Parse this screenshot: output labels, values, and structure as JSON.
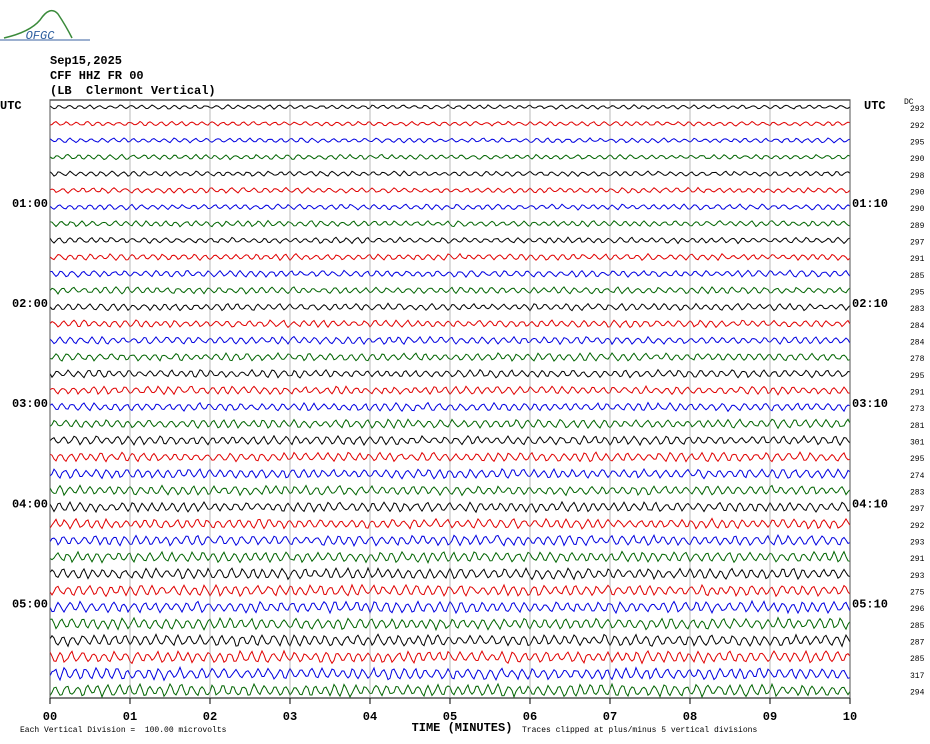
{
  "chart_data": {
    "type": "helicorder",
    "logo": "OFGC",
    "date": "Sep15,2025",
    "station": "CFF HHZ FR 00",
    "location": "(LB  Clermont Vertical)",
    "left_axis_label": "UTC",
    "right_axis_label": "UTC",
    "dc_label": "DC",
    "left_hour_labels": [
      "01:00",
      "02:00",
      "03:00",
      "04:00",
      "05:00"
    ],
    "right_hour_labels": [
      "01:10",
      "02:10",
      "03:10",
      "04:10",
      "05:10"
    ],
    "dc_values": [
      293,
      292,
      295,
      290,
      298,
      290,
      290,
      289,
      297,
      291,
      285,
      295,
      283,
      284,
      284,
      278,
      295,
      291,
      273,
      281,
      301,
      295,
      274,
      283,
      297,
      292,
      293,
      291,
      293,
      275,
      296,
      285,
      287,
      285,
      317,
      294
    ],
    "trace_colors": [
      "#000000",
      "#e00000",
      "#0000e0",
      "#006400"
    ],
    "x_label": "TIME (MINUTES)",
    "xlim": [
      0,
      10
    ],
    "xticks": [
      {
        "value": 0,
        "label": "00"
      },
      {
        "value": 1,
        "label": "01"
      },
      {
        "value": 2,
        "label": "02"
      },
      {
        "value": 3,
        "label": "03"
      },
      {
        "value": 4,
        "label": "04"
      },
      {
        "value": 5,
        "label": "05"
      },
      {
        "value": 6,
        "label": "06"
      },
      {
        "value": 7,
        "label": "07"
      },
      {
        "value": 8,
        "label": "08"
      },
      {
        "value": 9,
        "label": "09"
      },
      {
        "value": 10,
        "label": "10"
      }
    ],
    "scale_note": "Each Vertical Division =  100.00 microvolts",
    "clip_note": "Traces clipped at plus/minus 5 vertical divisions"
  }
}
